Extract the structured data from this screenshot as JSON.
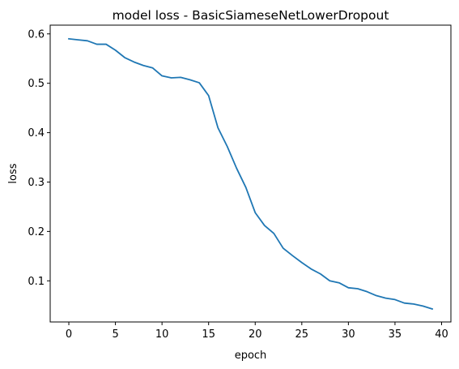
{
  "chart_data": {
    "type": "line",
    "title": "model loss - BasicSiameseNetLowerDropout",
    "xlabel": "epoch",
    "ylabel": "loss",
    "xlim": [
      -2,
      41
    ],
    "ylim": [
      0.0167,
      0.6177
    ],
    "xticks": [
      0,
      5,
      10,
      15,
      20,
      25,
      30,
      35,
      40
    ],
    "yticks": [
      0.1,
      0.2,
      0.3,
      0.4,
      0.5,
      0.6
    ],
    "grid": false,
    "legend": "none",
    "series": [
      {
        "color": "#1f77b4",
        "x": [
          0,
          1,
          2,
          3,
          4,
          5,
          6,
          7,
          8,
          9,
          10,
          11,
          12,
          13,
          14,
          15,
          16,
          17,
          18,
          19,
          20,
          21,
          22,
          23,
          24,
          25,
          26,
          27,
          28,
          29,
          30,
          31,
          32,
          33,
          34,
          35,
          36,
          37,
          38,
          39
        ],
        "values": [
          0.59,
          0.588,
          0.586,
          0.579,
          0.579,
          0.567,
          0.552,
          0.543,
          0.536,
          0.531,
          0.515,
          0.511,
          0.512,
          0.507,
          0.501,
          0.475,
          0.41,
          0.372,
          0.328,
          0.289,
          0.238,
          0.212,
          0.196,
          0.166,
          0.151,
          0.137,
          0.124,
          0.114,
          0.1,
          0.096,
          0.086,
          0.084,
          0.078,
          0.07,
          0.065,
          0.062,
          0.055,
          0.053,
          0.049,
          0.043
        ]
      }
    ]
  }
}
